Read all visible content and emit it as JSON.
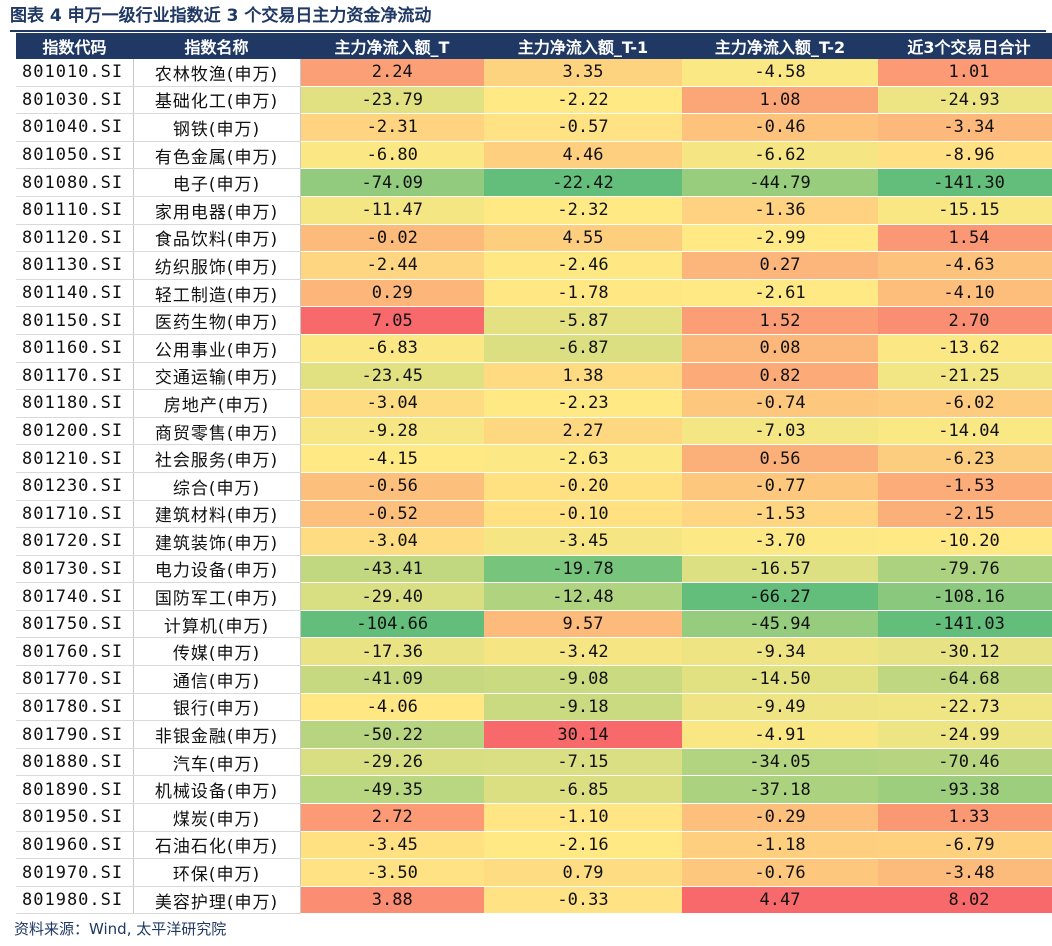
{
  "title": "图表 4  申万一级行业指数近 3 个交易日主力资金净流动",
  "headers": [
    "指数代码",
    "指数名称",
    "主力净流入额_T",
    "主力净流入额_T-1",
    "主力净流入额_T-2",
    "近3个交易日合计"
  ],
  "rows": [
    {
      "code": "801010.SI",
      "name": "农林牧渔(申万)",
      "v": [
        "2.24",
        "3.35",
        "-4.58",
        "1.01"
      ]
    },
    {
      "code": "801030.SI",
      "name": "基础化工(申万)",
      "v": [
        "-23.79",
        "-2.22",
        "1.08",
        "-24.93"
      ]
    },
    {
      "code": "801040.SI",
      "name": "钢铁(申万)",
      "v": [
        "-2.31",
        "-0.57",
        "-0.46",
        "-3.34"
      ]
    },
    {
      "code": "801050.SI",
      "name": "有色金属(申万)",
      "v": [
        "-6.80",
        "4.46",
        "-6.62",
        "-8.96"
      ]
    },
    {
      "code": "801080.SI",
      "name": "电子(申万)",
      "v": [
        "-74.09",
        "-22.42",
        "-44.79",
        "-141.30"
      ]
    },
    {
      "code": "801110.SI",
      "name": "家用电器(申万)",
      "v": [
        "-11.47",
        "-2.32",
        "-1.36",
        "-15.15"
      ]
    },
    {
      "code": "801120.SI",
      "name": "食品饮料(申万)",
      "v": [
        "-0.02",
        "4.55",
        "-2.99",
        "1.54"
      ]
    },
    {
      "code": "801130.SI",
      "name": "纺织服饰(申万)",
      "v": [
        "-2.44",
        "-2.46",
        "0.27",
        "-4.63"
      ]
    },
    {
      "code": "801140.SI",
      "name": "轻工制造(申万)",
      "v": [
        "0.29",
        "-1.78",
        "-2.61",
        "-4.10"
      ]
    },
    {
      "code": "801150.SI",
      "name": "医药生物(申万)",
      "v": [
        "7.05",
        "-5.87",
        "1.52",
        "2.70"
      ]
    },
    {
      "code": "801160.SI",
      "name": "公用事业(申万)",
      "v": [
        "-6.83",
        "-6.87",
        "0.08",
        "-13.62"
      ]
    },
    {
      "code": "801170.SI",
      "name": "交通运输(申万)",
      "v": [
        "-23.45",
        "1.38",
        "0.82",
        "-21.25"
      ]
    },
    {
      "code": "801180.SI",
      "name": "房地产(申万)",
      "v": [
        "-3.04",
        "-2.23",
        "-0.74",
        "-6.02"
      ]
    },
    {
      "code": "801200.SI",
      "name": "商贸零售(申万)",
      "v": [
        "-9.28",
        "2.27",
        "-7.03",
        "-14.04"
      ]
    },
    {
      "code": "801210.SI",
      "name": "社会服务(申万)",
      "v": [
        "-4.15",
        "-2.63",
        "0.56",
        "-6.23"
      ]
    },
    {
      "code": "801230.SI",
      "name": "综合(申万)",
      "v": [
        "-0.56",
        "-0.20",
        "-0.77",
        "-1.53"
      ]
    },
    {
      "code": "801710.SI",
      "name": "建筑材料(申万)",
      "v": [
        "-0.52",
        "-0.10",
        "-1.53",
        "-2.15"
      ]
    },
    {
      "code": "801720.SI",
      "name": "建筑装饰(申万)",
      "v": [
        "-3.04",
        "-3.45",
        "-3.70",
        "-10.20"
      ]
    },
    {
      "code": "801730.SI",
      "name": "电力设备(申万)",
      "v": [
        "-43.41",
        "-19.78",
        "-16.57",
        "-79.76"
      ]
    },
    {
      "code": "801740.SI",
      "name": "国防军工(申万)",
      "v": [
        "-29.40",
        "-12.48",
        "-66.27",
        "-108.16"
      ]
    },
    {
      "code": "801750.SI",
      "name": "计算机(申万)",
      "v": [
        "-104.66",
        "9.57",
        "-45.94",
        "-141.03"
      ]
    },
    {
      "code": "801760.SI",
      "name": "传媒(申万)",
      "v": [
        "-17.36",
        "-3.42",
        "-9.34",
        "-30.12"
      ]
    },
    {
      "code": "801770.SI",
      "name": "通信(申万)",
      "v": [
        "-41.09",
        "-9.08",
        "-14.50",
        "-64.68"
      ]
    },
    {
      "code": "801780.SI",
      "name": "银行(申万)",
      "v": [
        "-4.06",
        "-9.18",
        "-9.49",
        "-22.73"
      ]
    },
    {
      "code": "801790.SI",
      "name": "非银金融(申万)",
      "v": [
        "-50.22",
        "30.14",
        "-4.91",
        "-24.99"
      ]
    },
    {
      "code": "801880.SI",
      "name": "汽车(申万)",
      "v": [
        "-29.26",
        "-7.15",
        "-34.05",
        "-70.46"
      ]
    },
    {
      "code": "801890.SI",
      "name": "机械设备(申万)",
      "v": [
        "-49.35",
        "-6.85",
        "-37.18",
        "-93.38"
      ]
    },
    {
      "code": "801950.SI",
      "name": "煤炭(申万)",
      "v": [
        "2.72",
        "-1.10",
        "-0.29",
        "1.33"
      ]
    },
    {
      "code": "801960.SI",
      "name": "石油石化(申万)",
      "v": [
        "-3.45",
        "-2.16",
        "-1.18",
        "-6.79"
      ]
    },
    {
      "code": "801970.SI",
      "name": "环保(申万)",
      "v": [
        "-3.50",
        "0.79",
        "-0.76",
        "-3.48"
      ]
    },
    {
      "code": "801980.SI",
      "name": "美容护理(申万)",
      "v": [
        "3.88",
        "-0.33",
        "4.47",
        "8.02"
      ]
    }
  ],
  "scale_colors": {
    "low": "#63be7b",
    "mid": "#ffe984",
    "high": "#f8696b"
  },
  "source": "资料来源：Wind, 太平洋研究院"
}
